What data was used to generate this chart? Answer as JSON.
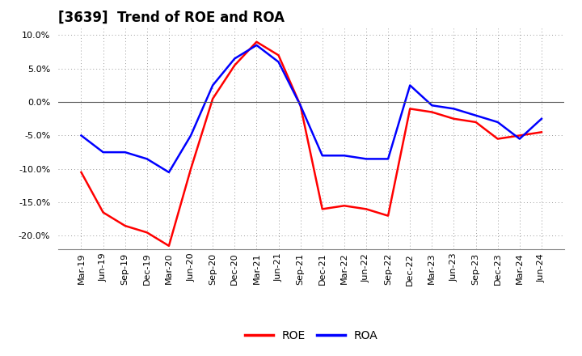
{
  "title": "[3639]  Trend of ROE and ROA",
  "labels": [
    "Mar-19",
    "Jun-19",
    "Sep-19",
    "Dec-19",
    "Mar-20",
    "Jun-20",
    "Sep-20",
    "Dec-20",
    "Mar-21",
    "Jun-21",
    "Sep-21",
    "Dec-21",
    "Mar-22",
    "Jun-22",
    "Sep-22",
    "Dec-22",
    "Mar-23",
    "Jun-23",
    "Sep-23",
    "Dec-23",
    "Mar-24",
    "Jun-24"
  ],
  "ROE": [
    -10.5,
    -16.5,
    -18.5,
    -19.5,
    -21.5,
    -10.0,
    0.5,
    5.5,
    9.0,
    7.0,
    -0.5,
    -16.0,
    -15.5,
    -16.0,
    -17.0,
    -1.0,
    -1.5,
    -2.5,
    -3.0,
    -5.5,
    -5.0,
    -4.5
  ],
  "ROA": [
    -5.0,
    -7.5,
    -7.5,
    -8.5,
    -10.5,
    -5.0,
    2.5,
    6.5,
    8.5,
    6.0,
    -0.5,
    -8.0,
    -8.0,
    -8.5,
    -8.5,
    2.5,
    -0.5,
    -1.0,
    -2.0,
    -3.0,
    -5.5,
    -2.5
  ],
  "roe_color": "#ff0000",
  "roa_color": "#0000ff",
  "background_color": "#ffffff",
  "grid_color": "#999999",
  "ylim": [
    -22.0,
    11.0
  ],
  "yticks": [
    -20.0,
    -15.0,
    -10.0,
    -5.0,
    0.0,
    5.0,
    10.0
  ],
  "legend_labels": [
    "ROE",
    "ROA"
  ],
  "line_width": 1.8,
  "title_fontsize": 12,
  "tick_fontsize": 8,
  "legend_fontsize": 10
}
